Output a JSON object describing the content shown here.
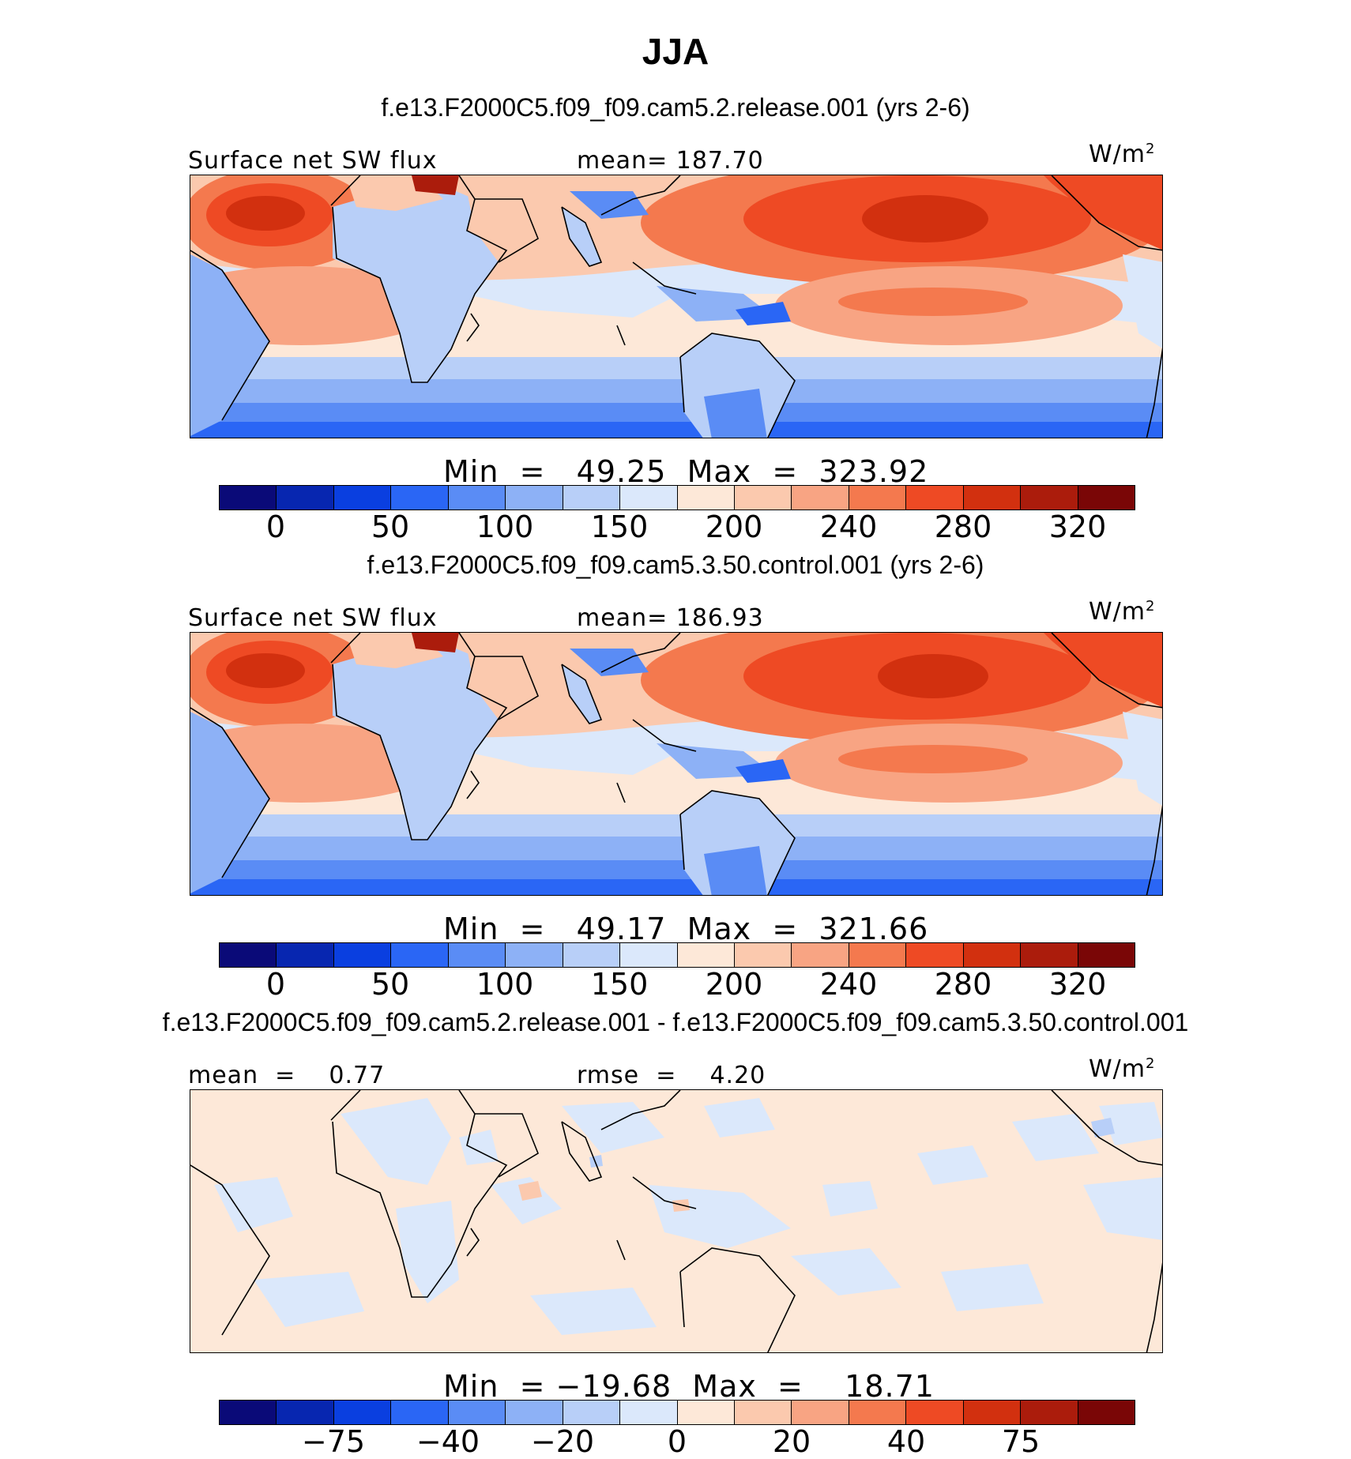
{
  "title": "JJA",
  "units_label": "W/m",
  "units_sup": "2",
  "colorbar_colors": [
    "#0a0a78",
    "#0726b0",
    "#0a3fe0",
    "#2a66f5",
    "#5a8cf5",
    "#8db1f6",
    "#b8cff8",
    "#dbe8fb",
    "#fde8d8",
    "#fbc9ae",
    "#f8a483",
    "#f4794e",
    "#ee4a24",
    "#d2300f",
    "#ab1c0c",
    "#7a0606"
  ],
  "panels": [
    {
      "subtitle": "f.e13.F2000C5.f09_f09.cam5.2.release.001 (yrs 2-6)",
      "left_label": "Surface net SW flux",
      "center_label": "mean= 187.70",
      "minmax_label": "Min  =   49.25  Max  =  323.92",
      "ticks": [
        "0",
        "50",
        "100",
        "150",
        "200",
        "240",
        "280",
        "320"
      ]
    },
    {
      "subtitle": "f.e13.F2000C5.f09_f09.cam5.3.50.control.001 (yrs 2-6)",
      "left_label": "Surface net SW flux",
      "center_label": "mean= 186.93",
      "minmax_label": "Min  =   49.17  Max  =  321.66",
      "ticks": [
        "0",
        "50",
        "100",
        "150",
        "200",
        "240",
        "280",
        "320"
      ]
    },
    {
      "subtitle": "f.e13.F2000C5.f09_f09.cam5.2.release.001 - f.e13.F2000C5.f09_f09.cam5.3.50.control.001",
      "left_label": "mean  =    0.77",
      "center_label": "rmse  =    4.20",
      "minmax_label": "Min  = −19.68  Max  =    18.71",
      "ticks": [
        "−75",
        "−40",
        "−20",
        "0",
        "20",
        "40",
        "75"
      ]
    }
  ],
  "chart_data": {
    "type": "heatmap",
    "title": "JJA",
    "panels": [
      {
        "name": "f.e13.F2000C5.f09_f09.cam5.2.release.001 (yrs 2-6)",
        "variable": "Surface net SW flux",
        "units": "W/m2",
        "mean": 187.7,
        "min": 49.25,
        "max": 323.92,
        "colorbar_levels": [
          0,
          25,
          50,
          75,
          100,
          125,
          150,
          175,
          200,
          220,
          240,
          260,
          280,
          300,
          320
        ]
      },
      {
        "name": "f.e13.F2000C5.f09_f09.cam5.3.50.control.001 (yrs 2-6)",
        "variable": "Surface net SW flux",
        "units": "W/m2",
        "mean": 186.93,
        "min": 49.17,
        "max": 321.66,
        "colorbar_levels": [
          0,
          25,
          50,
          75,
          100,
          125,
          150,
          175,
          200,
          220,
          240,
          260,
          280,
          300,
          320
        ]
      },
      {
        "name": "f.e13.F2000C5.f09_f09.cam5.2.release.001 - f.e13.F2000C5.f09_f09.cam5.3.50.control.001",
        "units": "W/m2",
        "mean": 0.77,
        "rmse": 4.2,
        "min": -19.68,
        "max": 18.71,
        "colorbar_levels": [
          -100,
          -75,
          -60,
          -40,
          -30,
          -20,
          -10,
          0,
          10,
          20,
          30,
          40,
          60,
          75,
          100
        ]
      }
    ]
  }
}
